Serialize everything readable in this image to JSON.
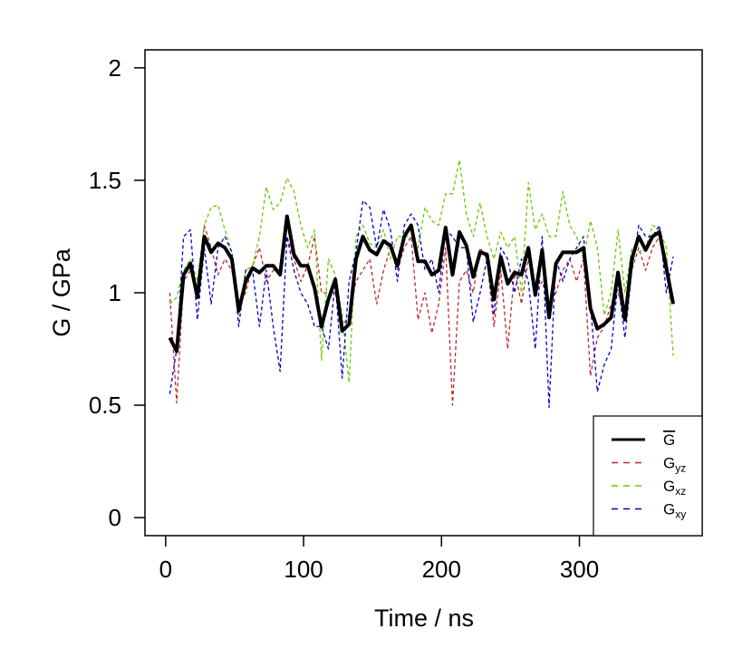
{
  "chart_data": {
    "type": "line",
    "x_label": "Time / ns",
    "y_label": "G / GPa",
    "xlim": [
      -15,
      389
    ],
    "ylim": [
      -0.08,
      2.08
    ],
    "xticks": [
      0,
      100,
      200,
      300
    ],
    "yticks": [
      0,
      0.5,
      1,
      1.5,
      2
    ],
    "legend": "bottom-right",
    "x": [
      3,
      8,
      13,
      18,
      23,
      28,
      33,
      38,
      43,
      48,
      53,
      58,
      63,
      68,
      73,
      78,
      83,
      88,
      93,
      98,
      103,
      108,
      113,
      118,
      123,
      128,
      133,
      138,
      143,
      148,
      153,
      158,
      163,
      168,
      173,
      178,
      183,
      188,
      193,
      198,
      203,
      208,
      213,
      218,
      223,
      228,
      233,
      238,
      243,
      248,
      253,
      258,
      263,
      268,
      273,
      278,
      283,
      288,
      293,
      298,
      303,
      308,
      313,
      318,
      323,
      328,
      333,
      338,
      343,
      348,
      353,
      358,
      363,
      368
    ],
    "series": [
      {
        "name": "G",
        "overline": true,
        "color": "#000000",
        "dashed": false,
        "values": [
          0.8,
          0.74,
          1.08,
          1.13,
          0.98,
          1.25,
          1.18,
          1.22,
          1.2,
          1.15,
          0.92,
          1.05,
          1.11,
          1.09,
          1.12,
          1.12,
          1.08,
          1.34,
          1.17,
          1.12,
          1.12,
          1.02,
          0.85,
          0.97,
          1.06,
          0.83,
          0.86,
          1.15,
          1.25,
          1.19,
          1.17,
          1.23,
          1.21,
          1.12,
          1.25,
          1.3,
          1.14,
          1.14,
          1.08,
          1.1,
          1.29,
          1.08,
          1.27,
          1.21,
          1.07,
          1.18,
          1.17,
          0.97,
          1.16,
          1.04,
          1.09,
          1.08,
          1.2,
          0.99,
          1.19,
          0.89,
          1.13,
          1.18,
          1.18,
          1.18,
          1.2,
          0.93,
          0.84,
          0.86,
          0.89,
          1.09,
          0.88,
          1.15,
          1.25,
          1.19,
          1.25,
          1.27,
          1.11,
          0.95
        ]
      },
      {
        "name": "G",
        "subscript": "yz",
        "color": "#c0282a",
        "dashed": true,
        "values": [
          1.0,
          0.51,
          1.05,
          1.1,
          1.0,
          1.3,
          1.2,
          1.08,
          1.15,
          1.1,
          0.95,
          1.0,
          1.12,
          1.2,
          1.05,
          1.1,
          1.1,
          1.25,
          1.15,
          1.05,
          1.12,
          1.25,
          1.0,
          1.0,
          1.0,
          0.85,
          0.9,
          1.05,
          1.1,
          1.15,
          0.95,
          1.1,
          1.2,
          1.1,
          1.2,
          1.25,
          0.88,
          1.0,
          0.82,
          0.95,
          1.2,
          0.5,
          1.05,
          1.1,
          1.0,
          1.2,
          1.15,
          0.85,
          1.1,
          0.75,
          1.1,
          0.95,
          1.15,
          1.0,
          1.05,
          0.95,
          1.0,
          1.1,
          1.15,
          1.05,
          1.15,
          0.63,
          0.8,
          0.85,
          0.95,
          1.0,
          0.9,
          1.1,
          1.2,
          1.1,
          1.2,
          1.25,
          1.15,
          0.95
        ]
      },
      {
        "name": "G",
        "subscript": "xz",
        "color": "#66cc00",
        "dashed": true,
        "values": [
          0.95,
          0.98,
          1.1,
          1.15,
          1.05,
          1.3,
          1.38,
          1.39,
          1.28,
          1.18,
          0.9,
          1.1,
          1.12,
          1.25,
          1.47,
          1.37,
          1.4,
          1.51,
          1.45,
          1.3,
          1.2,
          1.28,
          0.7,
          1.15,
          1.08,
          0.9,
          0.6,
          1.25,
          1.3,
          1.22,
          1.2,
          1.28,
          1.15,
          1.25,
          1.25,
          1.25,
          1.2,
          1.38,
          1.32,
          1.3,
          1.44,
          1.44,
          1.59,
          1.35,
          1.25,
          1.4,
          1.25,
          1.15,
          1.27,
          1.2,
          1.25,
          1.0,
          1.49,
          1.28,
          1.35,
          1.25,
          1.25,
          1.45,
          1.3,
          1.25,
          1.15,
          1.32,
          1.2,
          0.9,
          1.0,
          1.28,
          1.0,
          1.2,
          1.18,
          1.2,
          1.3,
          1.28,
          1.2,
          0.72
        ]
      },
      {
        "name": "G",
        "subscript": "xy",
        "color": "#0000cc",
        "dashed": true,
        "values": [
          0.55,
          0.75,
          1.25,
          1.28,
          0.88,
          1.2,
          0.95,
          1.2,
          1.25,
          1.18,
          0.85,
          1.1,
          1.1,
          0.85,
          1.1,
          0.85,
          0.65,
          1.25,
          1.1,
          1.0,
          0.95,
          0.85,
          0.85,
          0.75,
          1.05,
          0.62,
          1.05,
          1.18,
          1.41,
          1.38,
          1.2,
          1.37,
          1.28,
          1.05,
          1.3,
          1.35,
          1.3,
          1.1,
          1.15,
          1.0,
          1.28,
          1.25,
          1.2,
          1.2,
          0.87,
          1.0,
          1.15,
          0.9,
          1.2,
          1.15,
          1.0,
          1.15,
          1.05,
          0.75,
          1.25,
          0.49,
          1.15,
          1.05,
          1.15,
          1.2,
          1.25,
          0.95,
          0.56,
          0.68,
          0.75,
          1.05,
          0.8,
          1.1,
          1.3,
          1.25,
          1.25,
          1.3,
          1.0,
          1.16
        ]
      }
    ]
  }
}
